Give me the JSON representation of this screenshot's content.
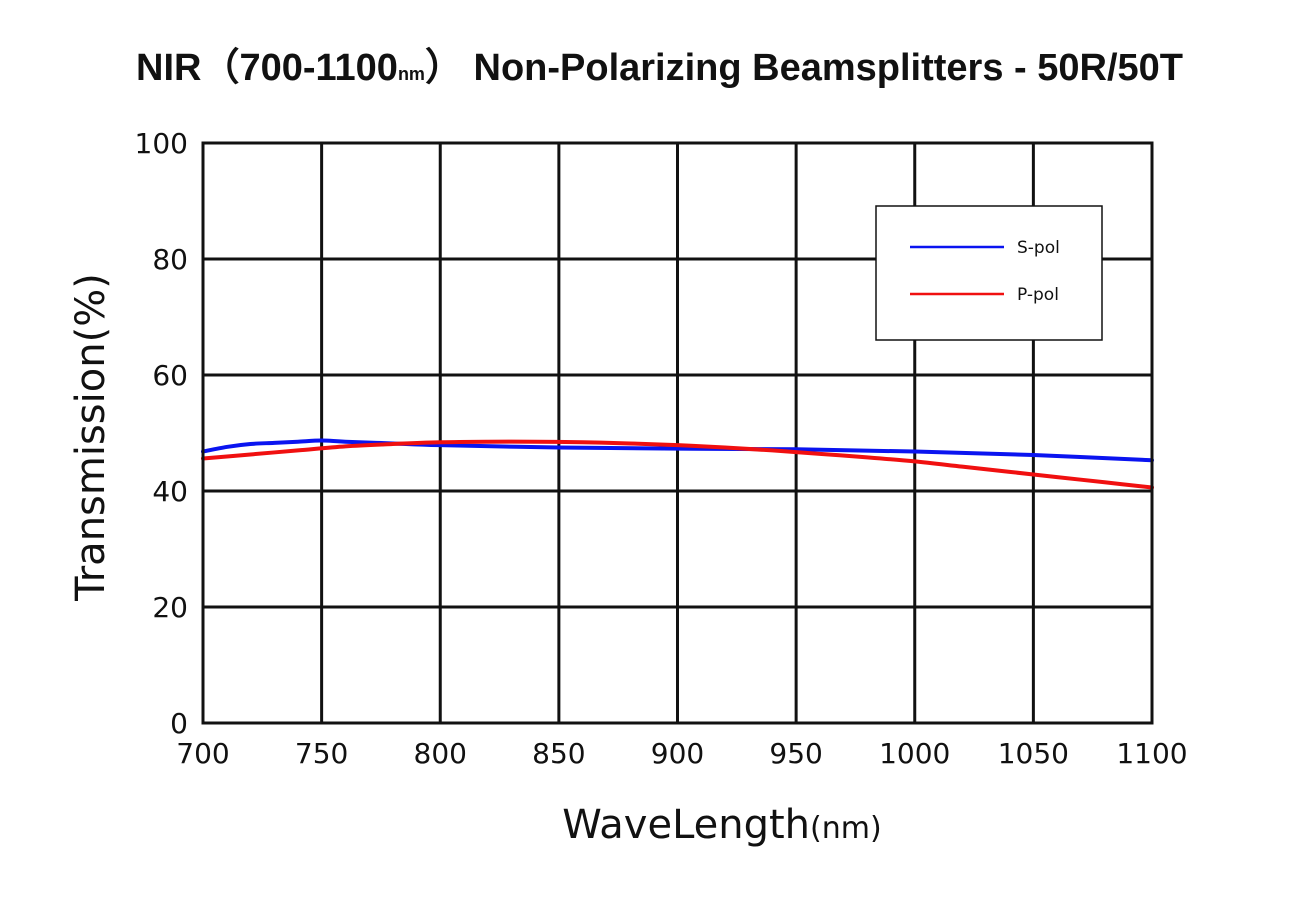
{
  "chart_data": {
    "type": "line",
    "title": "NIR（700-1100nm） Non-Polarizing Beamsplitters - 50R/50T",
    "title_parts": {
      "pre": "NIR（700-1100",
      "unit": "nm",
      "post": "） Non-Polarizing Beamsplitters - 50R/50T"
    },
    "xlabel": "WaveLength",
    "xlabel_unit": "(nm)",
    "ylabel": "Transmission(%)",
    "xlim": [
      700,
      1100
    ],
    "ylim": [
      0,
      100
    ],
    "xticks": [
      "700",
      "750",
      "800",
      "850",
      "900",
      "950",
      "1000",
      "1050",
      "1100"
    ],
    "yticks": [
      "0",
      "20",
      "40",
      "60",
      "80",
      "100"
    ],
    "grid": true,
    "legend_position": "top-right",
    "series": [
      {
        "name": "S-pol",
        "color": "#0a14f0",
        "x": [
          700,
          710,
          720,
          730,
          740,
          750,
          760,
          780,
          800,
          850,
          900,
          950,
          1000,
          1050,
          1100
        ],
        "y": [
          46.8,
          47.6,
          48.1,
          48.3,
          48.5,
          48.7,
          48.5,
          48.2,
          47.9,
          47.5,
          47.3,
          47.2,
          46.8,
          46.2,
          45.3
        ]
      },
      {
        "name": "P-pol",
        "color": "#f01010",
        "x": [
          700,
          720,
          740,
          760,
          780,
          800,
          820,
          840,
          860,
          880,
          900,
          920,
          940,
          960,
          980,
          1000,
          1020,
          1040,
          1060,
          1080,
          1100
        ],
        "y": [
          45.6,
          46.3,
          47.0,
          47.7,
          48.1,
          48.4,
          48.5,
          48.5,
          48.4,
          48.2,
          47.9,
          47.5,
          47.0,
          46.4,
          45.8,
          45.1,
          44.2,
          43.3,
          42.4,
          41.5,
          40.6
        ]
      }
    ]
  }
}
